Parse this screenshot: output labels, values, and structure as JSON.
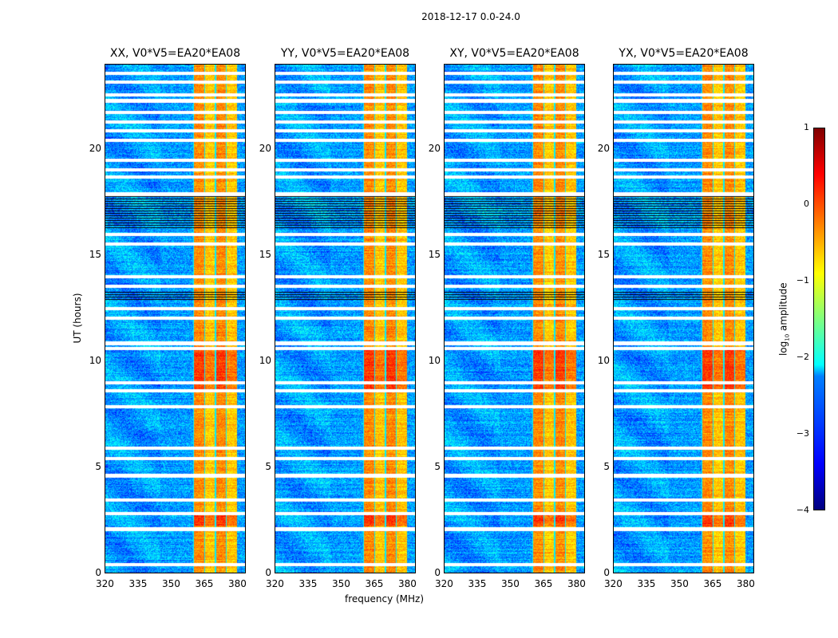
{
  "chart_data": {
    "type": "heatmap",
    "suptitle": "2018-12-17 0.0-24.0",
    "xlabel": "frequency (MHz)",
    "ylabel": "UT (hours)",
    "xlim": [
      320,
      384
    ],
    "ylim": [
      0,
      24
    ],
    "xticks": [
      "320",
      "335",
      "350",
      "365",
      "380"
    ],
    "yticks": [
      "0",
      "5",
      "10",
      "15",
      "20"
    ],
    "panels": [
      {
        "title": "XX, V0*V5=EA20*EA08"
      },
      {
        "title": "YY, V0*V5=EA20*EA08"
      },
      {
        "title": "XY, V0*V5=EA20*EA08"
      },
      {
        "title": "YX, V0*V5=EA20*EA08"
      }
    ],
    "colorbar": {
      "label": "log10 amplitude",
      "label_main": "log",
      "label_sub": "10",
      "label_rest": " amplitude",
      "range": [
        -4,
        1
      ],
      "ticks": [
        "1",
        "0",
        "−1",
        "−2",
        "−3",
        "−4"
      ],
      "colormap": "jet"
    },
    "background_level_log10": -2.6,
    "rfi_band_mhz": [
      360,
      380
    ],
    "rfi_level_log10": -0.3,
    "flagged_ut_hours": [
      0.4,
      2.07,
      2.8,
      3.45,
      4.6,
      5.4,
      5.9,
      7.85,
      8.6,
      9.0,
      10.6,
      10.85,
      12.05,
      12.5,
      13.55,
      14.0,
      15.55,
      16.0,
      17.9,
      18.7,
      19.05,
      19.5,
      20.45,
      20.9,
      21.3,
      21.75,
      22.3,
      22.6,
      23.2,
      23.6
    ],
    "low_amplitude_ut_ranges": [
      [
        12.85,
        13.3
      ],
      [
        16.3,
        17.8
      ]
    ]
  }
}
